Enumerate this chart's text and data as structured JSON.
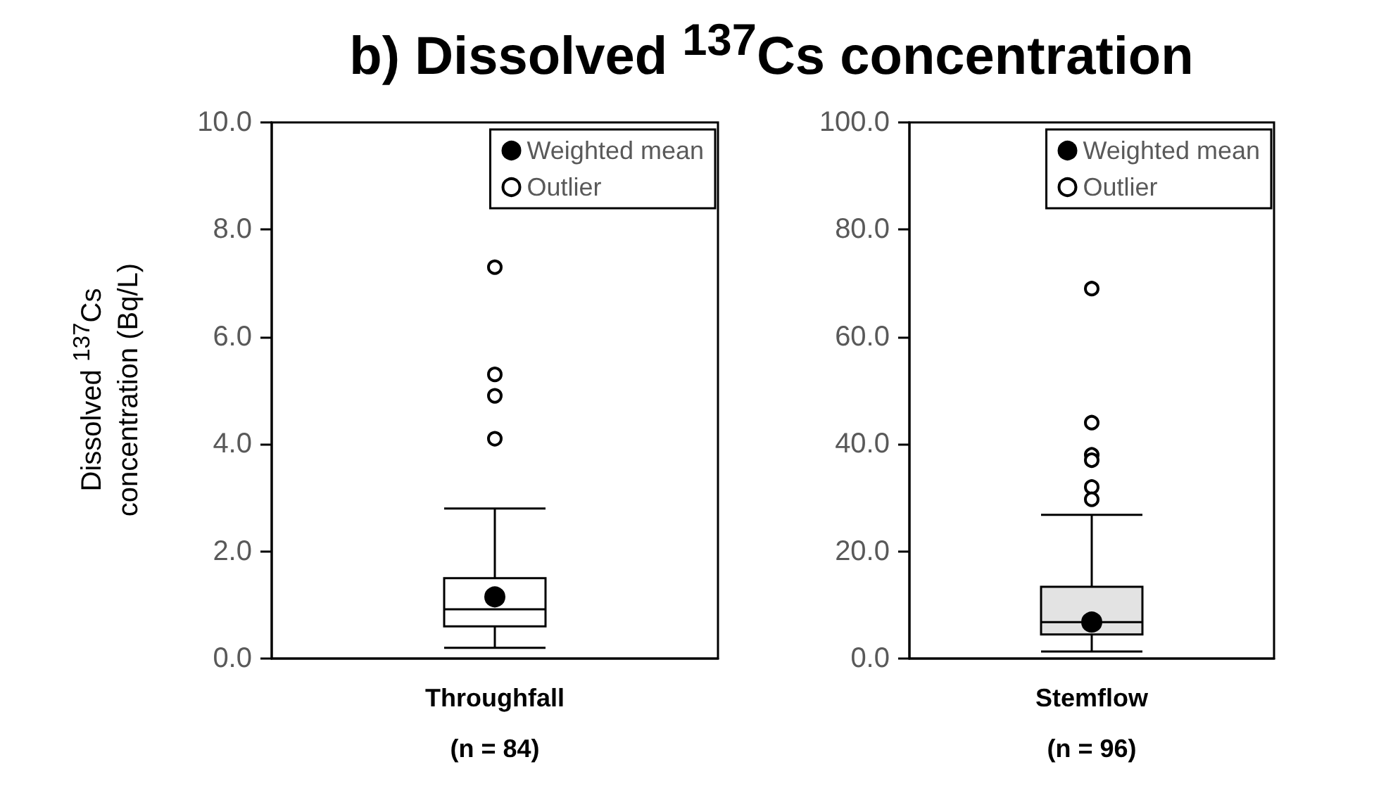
{
  "chart_data": [
    {
      "type": "box",
      "title": "b) Dissolved $^{137}$Cs concentration",
      "ylabel": "Dissolved $^{137}$Cs\nconcentration (Bq/L)",
      "categories": [
        "Throughfall\n(n = 84)"
      ],
      "ylim": [
        0,
        10
      ],
      "yticks": [
        {
          "value": 0,
          "label": "0.0"
        },
        {
          "value": 2,
          "label": "2.0"
        },
        {
          "value": 4,
          "label": "4.0"
        },
        {
          "value": 6,
          "label": "6.0"
        },
        {
          "value": 8,
          "label": "8.0"
        },
        {
          "value": 10,
          "label": "10.0"
        }
      ],
      "grid": false,
      "legend": "top right",
      "series": [
        {
          "color": "#ffffff",
          "boxes": [
            {
              "low": 0.2,
              "q1": 0.6,
              "median": 0.92,
              "q3": 1.5,
              "high": 2.8
            }
          ]
        },
        {
          "type": "scatter",
          "name": "Weighted mean",
          "color": "#000000",
          "marker": "circle",
          "x": [
            "Throughfall\n(n = 84)"
          ],
          "values": [
            1.15
          ]
        },
        {
          "type": "scatter",
          "name": "Outlier",
          "color": "#ffffff",
          "marker": "circle",
          "x": [
            "Throughfall\n(n = 84)",
            "Throughfall\n(n = 84)",
            "Throughfall\n(n = 84)",
            "Throughfall\n(n = 84)"
          ],
          "values": [
            7.3,
            5.3,
            4.9,
            4.1
          ]
        }
      ]
    },
    {
      "type": "box",
      "categories": [
        "Stemflow\n(n = 96)"
      ],
      "ylim": [
        0,
        100
      ],
      "yticks": [
        {
          "value": 0,
          "label": "0.0"
        },
        {
          "value": 20,
          "label": "20.0"
        },
        {
          "value": 40,
          "label": "40.0"
        },
        {
          "value": 60,
          "label": "60.0"
        },
        {
          "value": 80,
          "label": "80.0"
        },
        {
          "value": 100,
          "label": "100.0"
        }
      ],
      "grid": false,
      "legend": "top right",
      "series": [
        {
          "color": "#e3e3e3",
          "boxes": [
            {
              "low": 1.3,
              "q1": 4.5,
              "median": 6.8,
              "q3": 13.4,
              "high": 26.8
            }
          ]
        },
        {
          "type": "scatter",
          "name": "Weighted mean",
          "color": "#000000",
          "marker": "circle",
          "x": [
            "Stemflow\n(n = 96)"
          ],
          "values": [
            6.8
          ]
        },
        {
          "type": "scatter",
          "name": "Outlier",
          "color": "#ffffff",
          "marker": "circle",
          "x": [
            "Stemflow\n(n = 96)",
            "Stemflow\n(n = 96)",
            "Stemflow\n(n = 96)",
            "Stemflow\n(n = 96)",
            "Stemflow\n(n = 96)",
            "Stemflow\n(n = 96)"
          ],
          "values": [
            69,
            44,
            38,
            37,
            32,
            29.7
          ]
        }
      ]
    }
  ]
}
